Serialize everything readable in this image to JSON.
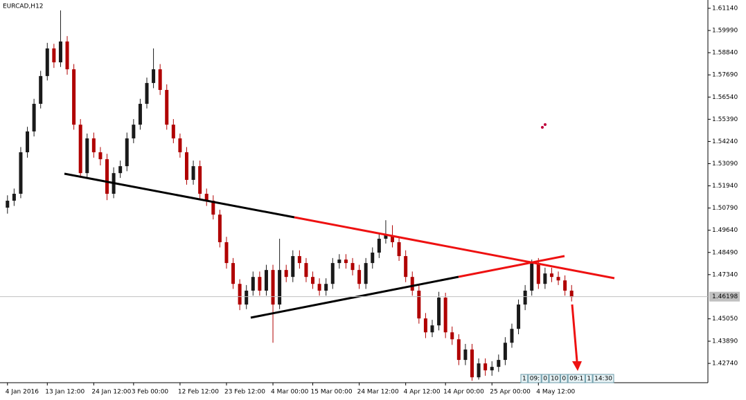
{
  "chart_data": {
    "type": "candlestick",
    "title": "EURCAD,H12",
    "up_color": "#1a1a1a",
    "down_color": "#b00000",
    "ylim": [
      1.4174,
      1.6157
    ],
    "yticks": [
      {
        "value": 1.6114,
        "label": "1.61140"
      },
      {
        "value": 1.5999,
        "label": "1.59990"
      },
      {
        "value": 1.5884,
        "label": "1.58840"
      },
      {
        "value": 1.5769,
        "label": "1.57690"
      },
      {
        "value": 1.5654,
        "label": "1.56540"
      },
      {
        "value": 1.5539,
        "label": "1.55390"
      },
      {
        "value": 1.5424,
        "label": "1.54240"
      },
      {
        "value": 1.5309,
        "label": "1.53090"
      },
      {
        "value": 1.5194,
        "label": "1.51940"
      },
      {
        "value": 1.5079,
        "label": "1.50790"
      },
      {
        "value": 1.4964,
        "label": "1.49640"
      },
      {
        "value": 1.4849,
        "label": "1.48490"
      },
      {
        "value": 1.4734,
        "label": "1.47340"
      },
      {
        "value": 1.4505,
        "label": "1.45050"
      },
      {
        "value": 1.4389,
        "label": "1.43890"
      },
      {
        "value": 1.4274,
        "label": "1.42740"
      }
    ],
    "current_price": 1.46198,
    "categories": [
      "4 Jan 2016",
      null,
      null,
      null,
      null,
      null,
      "13 Jan 12:00",
      null,
      null,
      null,
      null,
      null,
      null,
      "24 Jan 12:00",
      null,
      null,
      null,
      null,
      null,
      "3 Feb 00:00",
      null,
      null,
      null,
      null,
      null,
      null,
      "12 Feb 12:00",
      null,
      null,
      null,
      null,
      null,
      null,
      "23 Feb 12:00",
      null,
      null,
      null,
      null,
      null,
      null,
      "4 Mar 00:00",
      null,
      null,
      null,
      null,
      null,
      "15 Mar 00:00",
      null,
      null,
      null,
      null,
      null,
      null,
      "24 Mar 12:00",
      null,
      null,
      null,
      null,
      null,
      null,
      "4 Apr 12:00",
      null,
      null,
      null,
      null,
      null,
      "14 Apr 00:00",
      null,
      null,
      null,
      null,
      null,
      null,
      "25 Apr 00:00",
      null,
      null,
      null,
      null,
      null,
      null,
      "4 May 12:00",
      null,
      null,
      null,
      null,
      null
    ],
    "open": [
      1.5081,
      1.5117,
      1.5153,
      1.5368,
      1.5476,
      1.5619,
      1.5763,
      1.5906,
      1.5834,
      1.5942,
      1.5798,
      1.5511,
      1.526,
      1.544,
      1.5368,
      1.5332,
      1.5153,
      1.526,
      1.5296,
      1.544,
      1.5511,
      1.5619,
      1.5727,
      1.5798,
      1.5691,
      1.5511,
      1.544,
      1.5368,
      1.5225,
      1.5296,
      1.5153,
      1.5117,
      1.5045,
      1.4902,
      1.4794,
      1.4686,
      1.4579,
      1.4651,
      1.4722,
      1.4651,
      1.4758,
      1.4579,
      1.4758,
      1.4722,
      1.483,
      1.4794,
      1.4722,
      1.4686,
      1.4651,
      1.4686,
      1.4794,
      1.4812,
      1.4794,
      1.4758,
      1.4686,
      1.4794,
      1.4848,
      1.492,
      1.4938,
      1.4902,
      1.483,
      1.4722,
      1.4651,
      1.4507,
      1.4435,
      1.4471,
      1.4615,
      1.4435,
      1.4399,
      1.4292,
      1.4346,
      1.4202,
      1.4274,
      1.4238,
      1.4256,
      1.4292,
      1.4381,
      1.4453,
      1.4579,
      1.4651,
      1.4794,
      1.4686,
      1.474,
      1.4722,
      1.4704,
      1.4651
    ],
    "high": [
      1.5145,
      1.518,
      1.5395,
      1.55,
      1.5645,
      1.579,
      1.5935,
      1.593,
      1.6103,
      1.597,
      1.5825,
      1.554,
      1.5465,
      1.547,
      1.5395,
      1.536,
      1.529,
      1.5325,
      1.547,
      1.554,
      1.5645,
      1.5755,
      1.5906,
      1.5825,
      1.572,
      1.554,
      1.5465,
      1.5395,
      1.5325,
      1.5325,
      1.518,
      1.5145,
      1.507,
      1.493,
      1.482,
      1.471,
      1.468,
      1.475,
      1.475,
      1.4785,
      1.4785,
      1.492,
      1.4785,
      1.486,
      1.486,
      1.482,
      1.475,
      1.4715,
      1.4715,
      1.482,
      1.484,
      1.484,
      1.482,
      1.4785,
      1.482,
      1.4875,
      1.495,
      1.5016,
      1.499,
      1.493,
      1.486,
      1.475,
      1.468,
      1.4535,
      1.45,
      1.4645,
      1.464,
      1.4465,
      1.4425,
      1.4375,
      1.4375,
      1.43,
      1.43,
      1.4285,
      1.432,
      1.441,
      1.448,
      1.4605,
      1.468,
      1.4812,
      1.482,
      1.477,
      1.477,
      1.475,
      1.473,
      1.468
    ],
    "low": [
      1.505,
      1.509,
      1.513,
      1.534,
      1.545,
      1.5595,
      1.574,
      1.5805,
      1.581,
      1.577,
      1.5485,
      1.5235,
      1.5235,
      1.534,
      1.53,
      1.512,
      1.513,
      1.5235,
      1.527,
      1.5415,
      1.5485,
      1.5595,
      1.57,
      1.5665,
      1.5485,
      1.5415,
      1.534,
      1.52,
      1.52,
      1.5125,
      1.509,
      1.502,
      1.4875,
      1.4765,
      1.466,
      1.455,
      1.4555,
      1.4625,
      1.4625,
      1.4625,
      1.4381,
      1.4555,
      1.4695,
      1.4695,
      1.4765,
      1.4695,
      1.466,
      1.4625,
      1.4625,
      1.466,
      1.4765,
      1.4765,
      1.473,
      1.466,
      1.466,
      1.4765,
      1.482,
      1.4895,
      1.4875,
      1.4805,
      1.4695,
      1.4625,
      1.448,
      1.4405,
      1.441,
      1.4445,
      1.4405,
      1.437,
      1.4265,
      1.4265,
      1.4184,
      1.419,
      1.421,
      1.421,
      1.423,
      1.4265,
      1.4355,
      1.4425,
      1.455,
      1.4625,
      1.466,
      1.466,
      1.4695,
      1.468,
      1.4625,
      1.4595
    ],
    "close": [
      1.5117,
      1.5153,
      1.5368,
      1.5476,
      1.5619,
      1.5763,
      1.5906,
      1.5834,
      1.5942,
      1.5798,
      1.5511,
      1.526,
      1.544,
      1.5368,
      1.5332,
      1.5153,
      1.526,
      1.5296,
      1.544,
      1.5511,
      1.5619,
      1.5727,
      1.5798,
      1.5691,
      1.5511,
      1.544,
      1.5368,
      1.5225,
      1.5296,
      1.5153,
      1.5117,
      1.5045,
      1.4902,
      1.4794,
      1.4686,
      1.4579,
      1.4651,
      1.4722,
      1.4651,
      1.4758,
      1.4579,
      1.4758,
      1.4722,
      1.483,
      1.4794,
      1.4722,
      1.4686,
      1.4651,
      1.4686,
      1.4794,
      1.4812,
      1.4794,
      1.4758,
      1.4686,
      1.4794,
      1.4848,
      1.492,
      1.4938,
      1.4902,
      1.483,
      1.4722,
      1.4651,
      1.4507,
      1.4435,
      1.4471,
      1.4615,
      1.4435,
      1.4399,
      1.4292,
      1.4346,
      1.4202,
      1.4274,
      1.4238,
      1.4256,
      1.4292,
      1.4381,
      1.4453,
      1.4579,
      1.4651,
      1.4794,
      1.4686,
      1.474,
      1.4722,
      1.4704,
      1.4651,
      1.4618
    ],
    "status_boxes": [
      "1",
      "09:",
      "0",
      "10",
      "0",
      "09:1",
      "1",
      "14:30"
    ]
  }
}
